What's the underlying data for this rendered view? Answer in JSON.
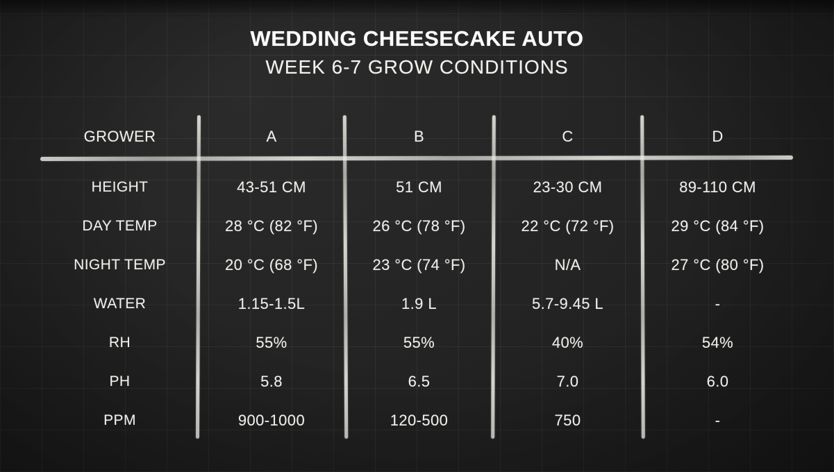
{
  "title": "WEDDING CHEESECAKE AUTO",
  "subtitle": "WEEK 6-7 GROW CONDITIONS",
  "colors": {
    "background": "#232323",
    "chalk": "#eeeee8"
  },
  "table": {
    "header_label": "GROWER",
    "columns": [
      "A",
      "B",
      "C",
      "D"
    ],
    "rows": [
      {
        "label": "HEIGHT",
        "values": [
          "43-51 CM",
          "51 CM",
          "23-30 CM",
          "89-110 CM"
        ]
      },
      {
        "label": "DAY TEMP",
        "values": [
          "28 °C (82 °F)",
          "26 °C (78 °F)",
          "22 °C (72 °F)",
          "29 °C (84 °F)"
        ]
      },
      {
        "label": "NIGHT TEMP",
        "values": [
          "20 °C (68 °F)",
          "23 °C (74 °F)",
          "N/A",
          "27 °C (80 °F)"
        ]
      },
      {
        "label": "WATER",
        "values": [
          "1.15-1.5L",
          "1.9 L",
          "5.7-9.45 L",
          "-"
        ]
      },
      {
        "label": "RH",
        "values": [
          "55%",
          "55%",
          "40%",
          "54%"
        ]
      },
      {
        "label": "PH",
        "values": [
          "5.8",
          "6.5",
          "7.0",
          "6.0"
        ]
      },
      {
        "label": "PPM",
        "values": [
          "900-1000",
          "120-500",
          "750",
          "-"
        ]
      }
    ]
  },
  "chart_data": {
    "type": "table",
    "title": "WEDDING CHEESECAKE AUTO",
    "subtitle": "WEEK 6-7 GROW CONDITIONS",
    "columns": [
      "GROWER",
      "A",
      "B",
      "C",
      "D"
    ],
    "rows": [
      [
        "HEIGHT",
        "43-51 CM",
        "51 CM",
        "23-30 CM",
        "89-110 CM"
      ],
      [
        "DAY TEMP",
        "28 °C (82 °F)",
        "26 °C (78 °F)",
        "22 °C (72 °F)",
        "29 °C (84 °F)"
      ],
      [
        "NIGHT TEMP",
        "20 °C (68 °F)",
        "23 °C (74 °F)",
        "N/A",
        "27 °C (80 °F)"
      ],
      [
        "WATER",
        "1.15-1.5L",
        "1.9 L",
        "5.7-9.45 L",
        "-"
      ],
      [
        "RH",
        "55%",
        "55%",
        "40%",
        "54%"
      ],
      [
        "PH",
        "5.8",
        "6.5",
        "7.0",
        "6.0"
      ],
      [
        "PPM",
        "900-1000",
        "120-500",
        "750",
        "-"
      ]
    ]
  }
}
